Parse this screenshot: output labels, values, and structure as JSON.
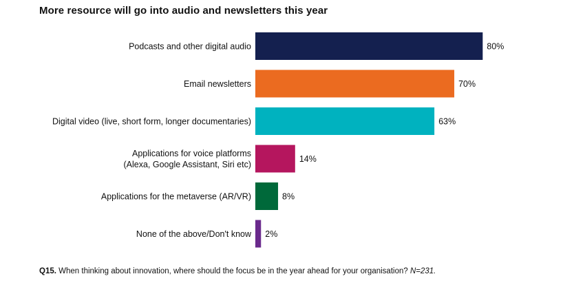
{
  "chart_data": {
    "type": "bar",
    "orientation": "horizontal",
    "title": "More resource will go into audio and newsletters this year",
    "categories": [
      [
        "Podcasts and other digital audio"
      ],
      [
        "Email newsletters"
      ],
      [
        "Digital video (live, short form, longer documentaries)"
      ],
      [
        "Applications for voice platforms",
        "(Alexa, Google Assistant, Siri etc)"
      ],
      [
        "Applications for the metaverse (AR/VR)"
      ],
      [
        "None of the above/Don't know"
      ]
    ],
    "values": [
      80,
      70,
      63,
      14,
      8,
      2
    ],
    "value_labels": [
      "80%",
      "70%",
      "63%",
      "14%",
      "8%",
      "2%"
    ],
    "colors": [
      "#14204f",
      "#eb6b20",
      "#00b2bf",
      "#b5165e",
      "#00693a",
      "#6a2a8c"
    ],
    "xlim": [
      0,
      100
    ],
    "grid": false,
    "legend": "none"
  },
  "footnote": {
    "question_label": "Q15.",
    "question_text": "When thinking about innovation, where should the focus be in the year ahead for your organisation?",
    "sample": "N=231."
  }
}
